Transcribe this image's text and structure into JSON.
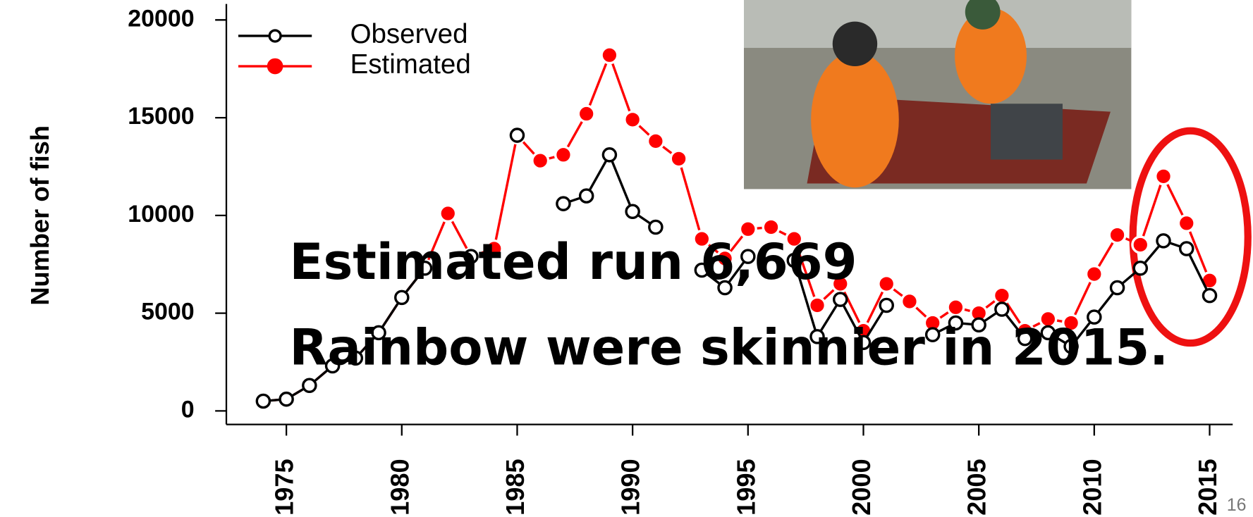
{
  "chart_data": {
    "type": "line",
    "y_label": "Number of fish",
    "x": [
      1974,
      1975,
      1976,
      1977,
      1978,
      1979,
      1980,
      1981,
      1982,
      1983,
      1984,
      1985,
      1986,
      1987,
      1988,
      1989,
      1990,
      1991,
      1992,
      1993,
      1994,
      1995,
      1996,
      1997,
      1998,
      1999,
      2000,
      2001,
      2002,
      2003,
      2004,
      2005,
      2006,
      2007,
      2008,
      2009,
      2010,
      2011,
      2012,
      2013,
      2014,
      2015
    ],
    "series": [
      {
        "name": "Observed",
        "color": "#000000",
        "values": [
          500,
          600,
          1300,
          2300,
          2700,
          4000,
          5800,
          7300,
          null,
          7900,
          null,
          14100,
          null,
          10600,
          11000,
          13100,
          10200,
          9400,
          null,
          7200,
          6300,
          7900,
          null,
          7700,
          3800,
          5700,
          3500,
          5400,
          null,
          3900,
          4500,
          4400,
          5200,
          3700,
          4000,
          3300,
          4800,
          6300,
          7300,
          8700,
          8300,
          5900
        ]
      },
      {
        "name": "Estimated",
        "color": "#ff0000",
        "values": [
          500,
          600,
          1300,
          2300,
          2700,
          4000,
          5800,
          7300,
          10100,
          7900,
          8300,
          14100,
          12800,
          13100,
          15200,
          18200,
          14900,
          13800,
          12900,
          8800,
          7800,
          9300,
          9400,
          8800,
          5400,
          6500,
          4100,
          6500,
          5600,
          4500,
          5300,
          5000,
          5900,
          4100,
          4700,
          4500,
          7000,
          9000,
          8500,
          12000,
          9600,
          6669
        ]
      }
    ],
    "xlim": [
      1972.4,
      2016
    ],
    "xticks": [
      1975,
      1980,
      1985,
      1990,
      1995,
      2000,
      2005,
      2010,
      2015
    ],
    "ylim": [
      0,
      20000
    ],
    "yticks": [
      0,
      5000,
      10000,
      15000,
      20000
    ],
    "legend": "upper left",
    "annotations": [
      "Estimated run 6,669",
      "Rainbow were skinnier in 2015."
    ],
    "page_number": "16"
  }
}
